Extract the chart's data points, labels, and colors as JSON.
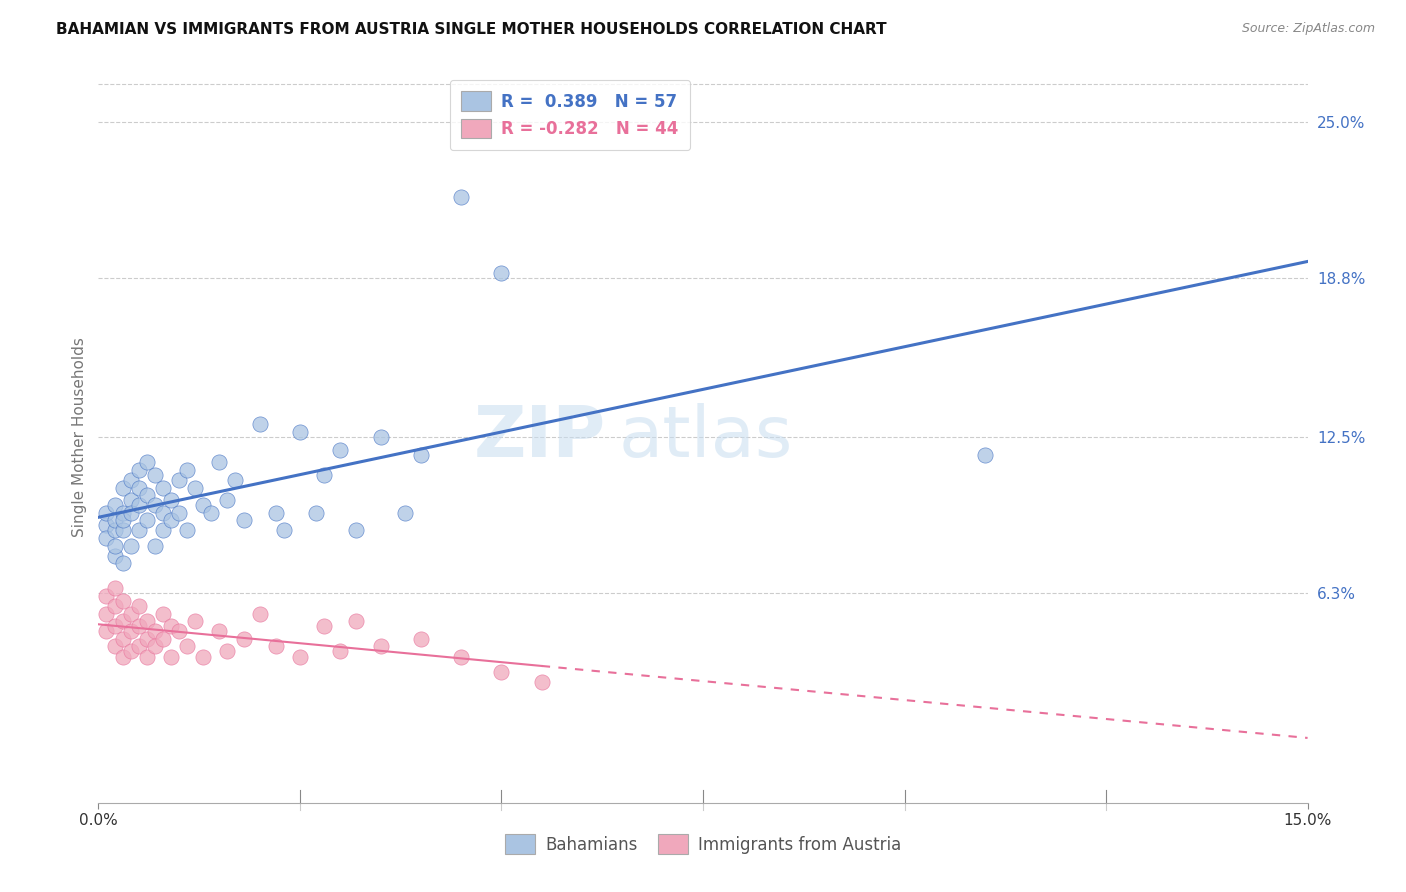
{
  "title": "BAHAMIAN VS IMMIGRANTS FROM AUSTRIA SINGLE MOTHER HOUSEHOLDS CORRELATION CHART",
  "source": "Source: ZipAtlas.com",
  "ylabel": "Single Mother Households",
  "ytick_labels": [
    "25.0%",
    "18.8%",
    "12.5%",
    "6.3%"
  ],
  "ytick_values": [
    0.25,
    0.188,
    0.125,
    0.063
  ],
  "xmin": 0.0,
  "xmax": 0.15,
  "ymin": -0.02,
  "ymax": 0.27,
  "color_bahamian": "#aac4e2",
  "color_austria": "#f0a8bc",
  "line_color_bahamian": "#4472c4",
  "line_color_austria": "#e8709a",
  "watermark_zip": "ZIP",
  "watermark_atlas": "atlas",
  "bahamian_x": [
    0.001,
    0.001,
    0.001,
    0.002,
    0.002,
    0.002,
    0.002,
    0.002,
    0.003,
    0.003,
    0.003,
    0.003,
    0.003,
    0.004,
    0.004,
    0.004,
    0.004,
    0.005,
    0.005,
    0.005,
    0.005,
    0.006,
    0.006,
    0.006,
    0.007,
    0.007,
    0.007,
    0.008,
    0.008,
    0.008,
    0.009,
    0.009,
    0.01,
    0.01,
    0.011,
    0.011,
    0.012,
    0.013,
    0.014,
    0.015,
    0.016,
    0.017,
    0.018,
    0.02,
    0.022,
    0.023,
    0.025,
    0.027,
    0.028,
    0.03,
    0.032,
    0.035,
    0.038,
    0.04,
    0.045,
    0.05,
    0.11
  ],
  "bahamian_y": [
    0.09,
    0.095,
    0.085,
    0.088,
    0.092,
    0.098,
    0.078,
    0.082,
    0.095,
    0.088,
    0.092,
    0.105,
    0.075,
    0.1,
    0.108,
    0.095,
    0.082,
    0.112,
    0.098,
    0.105,
    0.088,
    0.115,
    0.102,
    0.092,
    0.11,
    0.098,
    0.082,
    0.105,
    0.095,
    0.088,
    0.1,
    0.092,
    0.108,
    0.095,
    0.112,
    0.088,
    0.105,
    0.098,
    0.095,
    0.115,
    0.1,
    0.108,
    0.092,
    0.13,
    0.095,
    0.088,
    0.127,
    0.095,
    0.11,
    0.12,
    0.088,
    0.125,
    0.095,
    0.118,
    0.22,
    0.19,
    0.118
  ],
  "austria_x": [
    0.001,
    0.001,
    0.001,
    0.002,
    0.002,
    0.002,
    0.002,
    0.003,
    0.003,
    0.003,
    0.003,
    0.004,
    0.004,
    0.004,
    0.005,
    0.005,
    0.005,
    0.006,
    0.006,
    0.006,
    0.007,
    0.007,
    0.008,
    0.008,
    0.009,
    0.009,
    0.01,
    0.011,
    0.012,
    0.013,
    0.015,
    0.016,
    0.018,
    0.02,
    0.022,
    0.025,
    0.028,
    0.03,
    0.032,
    0.035,
    0.04,
    0.045,
    0.05,
    0.055
  ],
  "austria_y": [
    0.055,
    0.062,
    0.048,
    0.058,
    0.065,
    0.05,
    0.042,
    0.052,
    0.06,
    0.045,
    0.038,
    0.055,
    0.048,
    0.04,
    0.058,
    0.05,
    0.042,
    0.052,
    0.045,
    0.038,
    0.048,
    0.042,
    0.055,
    0.045,
    0.05,
    0.038,
    0.048,
    0.042,
    0.052,
    0.038,
    0.048,
    0.04,
    0.045,
    0.055,
    0.042,
    0.038,
    0.05,
    0.04,
    0.052,
    0.042,
    0.045,
    0.038,
    0.032,
    0.028
  ],
  "xtick_positions": [
    0.0,
    0.15
  ],
  "xtick_labels": [
    "0.0%",
    "15.0%"
  ],
  "xtick_minor_positions": [
    0.025,
    0.05,
    0.075,
    0.1,
    0.125
  ]
}
